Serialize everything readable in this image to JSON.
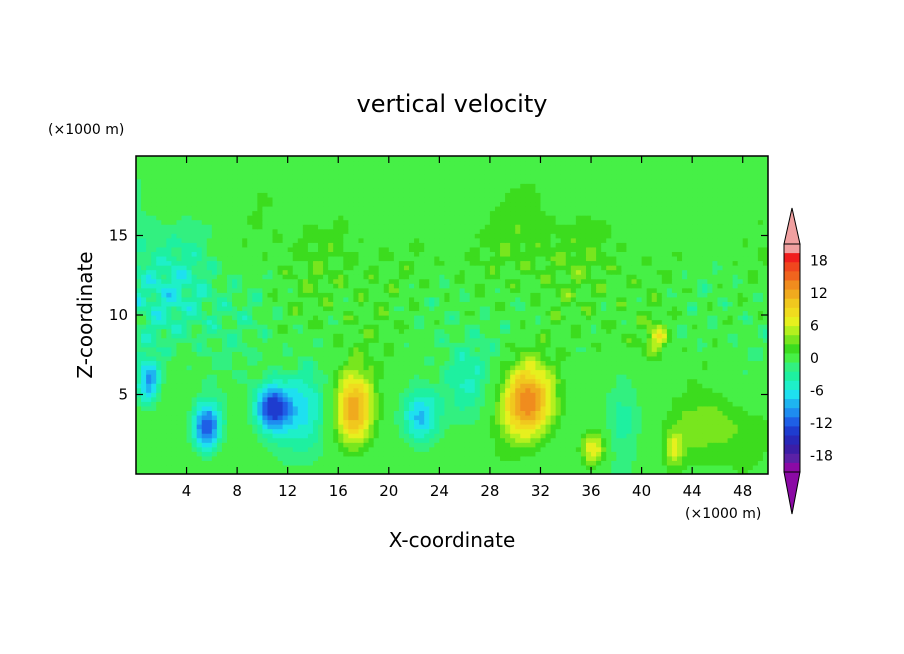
{
  "chart_data": {
    "type": "heatmap",
    "title": "vertical velocity",
    "xlabel": "X-coordinate",
    "ylabel": "Z-coordinate",
    "x_unit": "(×1000 m)",
    "y_unit": "(×1000 m)",
    "xlim": [
      0,
      50
    ],
    "ylim": [
      0,
      20
    ],
    "x_ticks": [
      4,
      8,
      12,
      16,
      20,
      24,
      28,
      32,
      36,
      40,
      44,
      48
    ],
    "y_ticks": [
      5,
      10,
      15
    ],
    "colorbar": {
      "ticks": [
        18,
        12,
        6,
        0,
        -6,
        -12,
        -18
      ],
      "levels": [
        -21,
        -19.5,
        -18,
        -16.5,
        -15,
        -13.5,
        -12,
        -10.5,
        -9,
        -7.5,
        -6,
        -4.5,
        -3,
        -1.5,
        0,
        1.5,
        3,
        4.5,
        6,
        7.5,
        9,
        10.5,
        12,
        13.5,
        15,
        16.5,
        18,
        19.5,
        21
      ],
      "colors": [
        "#8b0aa5",
        "#5b21a6",
        "#3b1ea6",
        "#2828b8",
        "#1e3ccf",
        "#1e5fe6",
        "#1e8cf0",
        "#1eb4f0",
        "#1ee0f0",
        "#1ef0c8",
        "#1ef0a0",
        "#32f080",
        "#46f046",
        "#3cdc1e",
        "#78e61e",
        "#b4f01e",
        "#e6f01e",
        "#f0dc1e",
        "#f0c81e",
        "#f0aa1e",
        "#f08c1e",
        "#f0641e",
        "#f0461e",
        "#f01e1e",
        "#f0a0a0"
      ],
      "under_color": "#8b0aa5",
      "over_color": "#f0a0a0"
    },
    "features": [
      {
        "x": 1,
        "z": 5.5,
        "w": -9
      },
      {
        "x": 5.5,
        "z": 3,
        "w": -12
      },
      {
        "x": 10.5,
        "z": 4,
        "w": -12
      },
      {
        "x": 17,
        "z": 4,
        "w": 11
      },
      {
        "x": 22.5,
        "z": 3.5,
        "w": -9
      },
      {
        "x": 31,
        "z": 4.5,
        "w": 13
      },
      {
        "x": 36,
        "z": 1.5,
        "w": 8
      },
      {
        "x": 41,
        "z": 8.5,
        "w": 6
      },
      {
        "x": 42.5,
        "z": 1.5,
        "w": 5
      }
    ]
  }
}
